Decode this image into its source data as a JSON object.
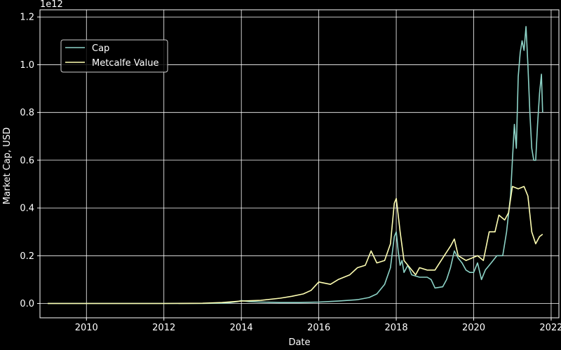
{
  "chart_data": {
    "type": "line",
    "xlabel": "Date",
    "ylabel": "Market Cap, USD",
    "y_offset_label": "1e12",
    "xlim": [
      2008.8,
      2022.2
    ],
    "ylim": [
      -0.06,
      1.23
    ],
    "x_ticks": [
      2010,
      2012,
      2014,
      2016,
      2018,
      2020,
      2022
    ],
    "x_tick_labels": [
      "2010",
      "2012",
      "2014",
      "2016",
      "2018",
      "2020",
      "2022"
    ],
    "y_ticks": [
      0.0,
      0.2,
      0.4,
      0.6,
      0.8,
      1.0,
      1.2
    ],
    "y_tick_labels": [
      "0.0",
      "0.2",
      "0.4",
      "0.6",
      "0.8",
      "1.0",
      "1.2"
    ],
    "grid": true,
    "legend_position": "top-left",
    "series": [
      {
        "name": "Cap",
        "color": "#8dd3c7",
        "points": [
          [
            2009.0,
            0.0
          ],
          [
            2010.0,
            0.0
          ],
          [
            2011.0,
            0.0
          ],
          [
            2012.0,
            0.0
          ],
          [
            2013.0,
            0.0
          ],
          [
            2013.6,
            0.002
          ],
          [
            2013.9,
            0.008
          ],
          [
            2014.0,
            0.012
          ],
          [
            2014.2,
            0.008
          ],
          [
            2014.5,
            0.006
          ],
          [
            2015.0,
            0.004
          ],
          [
            2015.5,
            0.004
          ],
          [
            2016.0,
            0.006
          ],
          [
            2016.5,
            0.01
          ],
          [
            2017.0,
            0.016
          ],
          [
            2017.3,
            0.025
          ],
          [
            2017.5,
            0.04
          ],
          [
            2017.7,
            0.08
          ],
          [
            2017.85,
            0.15
          ],
          [
            2017.95,
            0.28
          ],
          [
            2018.0,
            0.3
          ],
          [
            2018.05,
            0.22
          ],
          [
            2018.1,
            0.16
          ],
          [
            2018.15,
            0.18
          ],
          [
            2018.2,
            0.13
          ],
          [
            2018.3,
            0.16
          ],
          [
            2018.4,
            0.12
          ],
          [
            2018.6,
            0.11
          ],
          [
            2018.8,
            0.11
          ],
          [
            2018.9,
            0.1
          ],
          [
            2019.0,
            0.065
          ],
          [
            2019.2,
            0.07
          ],
          [
            2019.3,
            0.1
          ],
          [
            2019.4,
            0.15
          ],
          [
            2019.5,
            0.22
          ],
          [
            2019.6,
            0.19
          ],
          [
            2019.7,
            0.17
          ],
          [
            2019.8,
            0.14
          ],
          [
            2019.9,
            0.13
          ],
          [
            2020.0,
            0.13
          ],
          [
            2020.1,
            0.17
          ],
          [
            2020.2,
            0.1
          ],
          [
            2020.3,
            0.14
          ],
          [
            2020.45,
            0.17
          ],
          [
            2020.6,
            0.2
          ],
          [
            2020.75,
            0.2
          ],
          [
            2020.85,
            0.3
          ],
          [
            2020.95,
            0.45
          ],
          [
            2021.0,
            0.6
          ],
          [
            2021.05,
            0.75
          ],
          [
            2021.1,
            0.65
          ],
          [
            2021.15,
            0.95
          ],
          [
            2021.2,
            1.05
          ],
          [
            2021.25,
            1.1
          ],
          [
            2021.3,
            1.06
          ],
          [
            2021.35,
            1.16
          ],
          [
            2021.4,
            1.0
          ],
          [
            2021.45,
            0.8
          ],
          [
            2021.5,
            0.65
          ],
          [
            2021.55,
            0.6
          ],
          [
            2021.6,
            0.6
          ],
          [
            2021.65,
            0.75
          ],
          [
            2021.7,
            0.88
          ],
          [
            2021.75,
            0.96
          ],
          [
            2021.78,
            0.8
          ]
        ]
      },
      {
        "name": "Metcalfe Value",
        "color": "#ffffb3",
        "points": [
          [
            2009.0,
            0.0
          ],
          [
            2010.0,
            0.0
          ],
          [
            2011.0,
            0.0
          ],
          [
            2012.0,
            0.0
          ],
          [
            2013.0,
            0.001
          ],
          [
            2013.5,
            0.004
          ],
          [
            2014.0,
            0.01
          ],
          [
            2014.5,
            0.013
          ],
          [
            2015.0,
            0.022
          ],
          [
            2015.3,
            0.03
          ],
          [
            2015.6,
            0.04
          ],
          [
            2015.8,
            0.055
          ],
          [
            2016.0,
            0.09
          ],
          [
            2016.3,
            0.08
          ],
          [
            2016.5,
            0.1
          ],
          [
            2016.8,
            0.12
          ],
          [
            2017.0,
            0.15
          ],
          [
            2017.2,
            0.16
          ],
          [
            2017.35,
            0.22
          ],
          [
            2017.5,
            0.17
          ],
          [
            2017.7,
            0.18
          ],
          [
            2017.85,
            0.25
          ],
          [
            2017.95,
            0.42
          ],
          [
            2018.0,
            0.44
          ],
          [
            2018.1,
            0.3
          ],
          [
            2018.2,
            0.18
          ],
          [
            2018.35,
            0.15
          ],
          [
            2018.5,
            0.12
          ],
          [
            2018.6,
            0.15
          ],
          [
            2018.8,
            0.14
          ],
          [
            2019.0,
            0.14
          ],
          [
            2019.2,
            0.19
          ],
          [
            2019.4,
            0.24
          ],
          [
            2019.5,
            0.27
          ],
          [
            2019.6,
            0.2
          ],
          [
            2019.8,
            0.18
          ],
          [
            2019.95,
            0.19
          ],
          [
            2020.1,
            0.2
          ],
          [
            2020.25,
            0.18
          ],
          [
            2020.4,
            0.3
          ],
          [
            2020.55,
            0.3
          ],
          [
            2020.65,
            0.37
          ],
          [
            2020.8,
            0.35
          ],
          [
            2020.9,
            0.38
          ],
          [
            2021.0,
            0.49
          ],
          [
            2021.15,
            0.48
          ],
          [
            2021.3,
            0.49
          ],
          [
            2021.4,
            0.45
          ],
          [
            2021.5,
            0.3
          ],
          [
            2021.6,
            0.25
          ],
          [
            2021.7,
            0.28
          ],
          [
            2021.78,
            0.29
          ]
        ]
      }
    ]
  }
}
